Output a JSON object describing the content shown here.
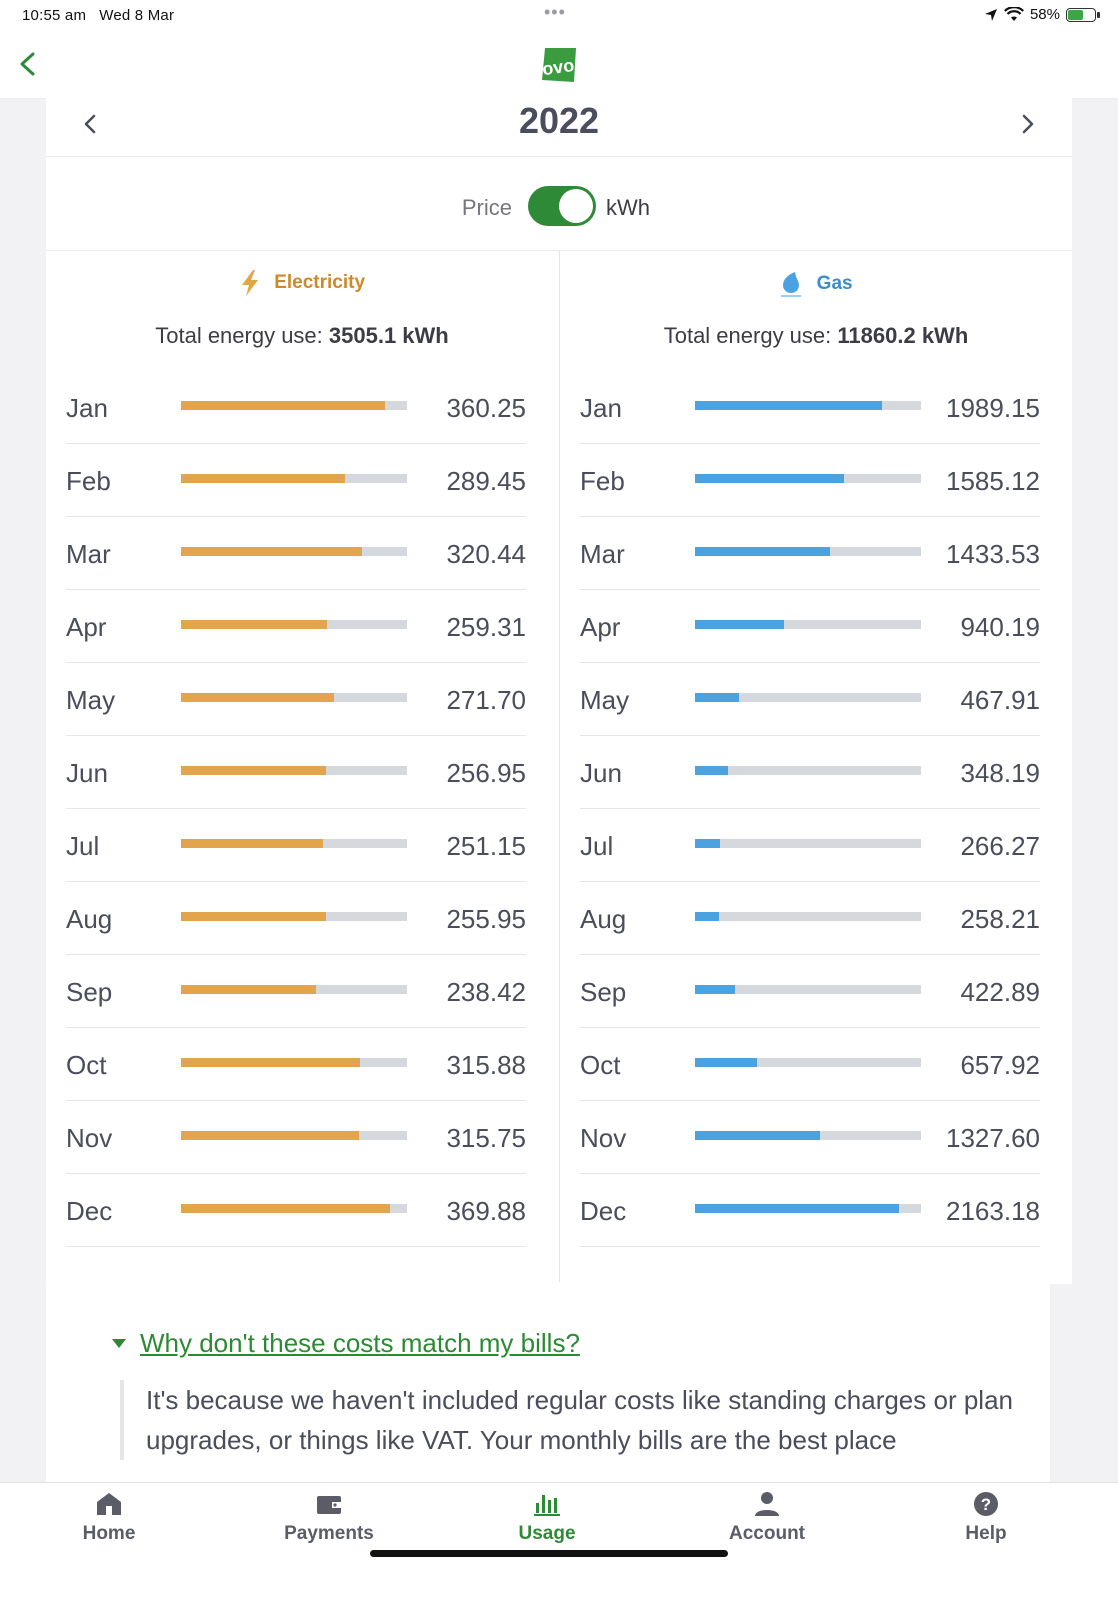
{
  "status_bar": {
    "time": "10:55 am",
    "date": "Wed 8 Mar",
    "dots": "•••",
    "battery": "58%"
  },
  "header": {
    "logo_text": "ovo"
  },
  "year_nav": {
    "year": "2022"
  },
  "toggle": {
    "left_label": "Price",
    "right_label": "kWh",
    "state": "kWh"
  },
  "electricity": {
    "title": "Electricity",
    "total_label": "Total energy use:",
    "total_value": "3505.1 kWh",
    "max": 400,
    "rows": [
      {
        "month": "Jan",
        "value": "360.25"
      },
      {
        "month": "Feb",
        "value": "289.45"
      },
      {
        "month": "Mar",
        "value": "320.44"
      },
      {
        "month": "Apr",
        "value": "259.31"
      },
      {
        "month": "May",
        "value": "271.70"
      },
      {
        "month": "Jun",
        "value": "256.95"
      },
      {
        "month": "Jul",
        "value": "251.15"
      },
      {
        "month": "Aug",
        "value": "255.95"
      },
      {
        "month": "Sep",
        "value": "238.42"
      },
      {
        "month": "Oct",
        "value": "315.88"
      },
      {
        "month": "Nov",
        "value": "315.75"
      },
      {
        "month": "Dec",
        "value": "369.88"
      }
    ]
  },
  "gas": {
    "title": "Gas",
    "total_label": "Total energy use:",
    "total_value": "11860.2 kWh",
    "max": 2400,
    "rows": [
      {
        "month": "Jan",
        "value": "1989.15"
      },
      {
        "month": "Feb",
        "value": "1585.12"
      },
      {
        "month": "Mar",
        "value": "1433.53"
      },
      {
        "month": "Apr",
        "value": "940.19"
      },
      {
        "month": "May",
        "value": "467.91"
      },
      {
        "month": "Jun",
        "value": "348.19"
      },
      {
        "month": "Jul",
        "value": "266.27"
      },
      {
        "month": "Aug",
        "value": "258.21"
      },
      {
        "month": "Sep",
        "value": "422.89"
      },
      {
        "month": "Oct",
        "value": "657.92"
      },
      {
        "month": "Nov",
        "value": "1327.60"
      },
      {
        "month": "Dec",
        "value": "2163.18"
      }
    ]
  },
  "faq": {
    "question": "Why don't these costs match my bills?",
    "answer": "It's because we haven't included regular costs like standing charges or plan upgrades, or things like VAT. Your monthly bills are the best place"
  },
  "tabs": [
    {
      "label": "Home",
      "icon": "home-icon"
    },
    {
      "label": "Payments",
      "icon": "wallet-icon"
    },
    {
      "label": "Usage",
      "icon": "usage-icon",
      "active": true
    },
    {
      "label": "Account",
      "icon": "person-icon"
    },
    {
      "label": "Help",
      "icon": "help-icon"
    }
  ],
  "colors": {
    "brand_green": "#2f8a37",
    "electricity": "#e2a54b",
    "gas": "#4aa3e0",
    "track": "#d5d9de"
  }
}
